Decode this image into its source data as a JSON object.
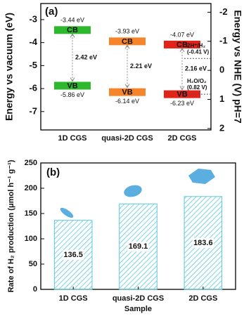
{
  "chart_data": [
    {
      "type": "band-diagram",
      "panel_label": "(a)",
      "ylabel": "Energy vs vacuum (eV)",
      "y2label": "Energy vs NHE (V) pH=7",
      "ylim": [
        -7.8,
        -2.3
      ],
      "yticks": [
        -3,
        -4,
        -5,
        -6,
        -7
      ],
      "y2lim": [
        2.05,
        -2.3
      ],
      "y2ticks": [
        -2,
        -1,
        0,
        1,
        2
      ],
      "categories": [
        "1D CGS",
        "quasi-2D CGS",
        "2D CGS"
      ],
      "colors": [
        "#2db82d",
        "#f5842a",
        "#e2231a"
      ],
      "band_names": [
        "CB",
        "VB"
      ],
      "cb": [
        -3.44,
        -3.93,
        -4.07
      ],
      "cb_labels": [
        "-3.44 eV",
        "-3.93 eV",
        "-4.07 eV"
      ],
      "vb": [
        -5.86,
        -6.14,
        -6.23
      ],
      "vb_labels": [
        "-5.86 eV",
        "-6.14 eV",
        "-6.23 eV"
      ],
      "gaps": [
        2.42,
        2.21,
        2.16
      ],
      "gap_labels": [
        "2.42 eV",
        "2.21 eV",
        "2.16 eV"
      ],
      "redox": [
        {
          "label": "2H⁺/H₂",
          "value_label": "(-0.41 V)",
          "value": -0.41
        },
        {
          "label": "H₂O/O₂",
          "value_label": "(0.82 V)",
          "value": 0.82
        }
      ]
    },
    {
      "type": "bar",
      "panel_label": "(b)",
      "xlabel": "Sample",
      "ylabel": "Rate of H₂ production (μmol h⁻¹ g⁻¹)",
      "categories": [
        "1D CGS",
        "quasi-2D CGS",
        "2D CGS"
      ],
      "values": [
        136.5,
        169.1,
        183.6
      ],
      "color": "#5bc8dc",
      "ylim": [
        0,
        250
      ],
      "yticks": [
        0,
        50,
        100,
        150,
        200,
        250
      ]
    }
  ]
}
